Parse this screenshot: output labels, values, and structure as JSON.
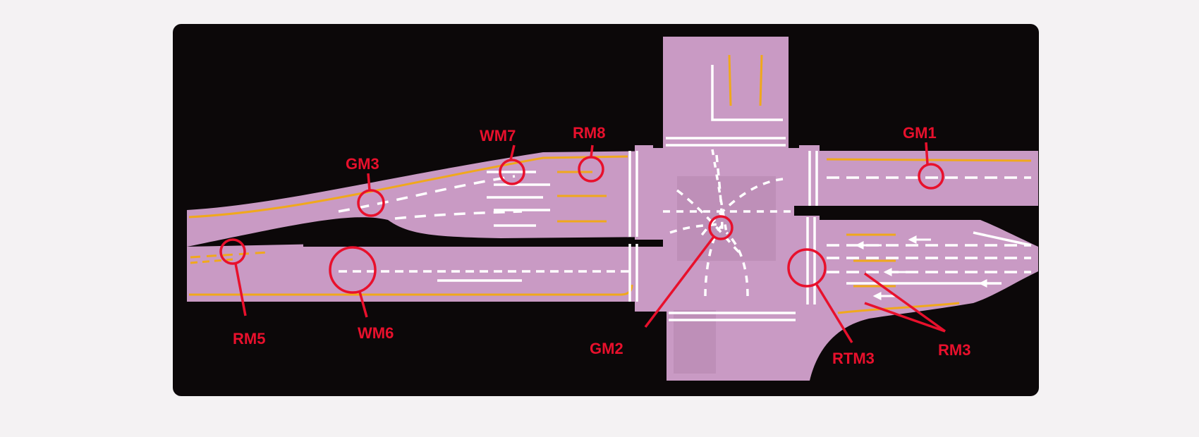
{
  "colors": {
    "background": "#f4f2f3",
    "board": "#0c0809",
    "road": "#c99ac4",
    "road_shade": "#b98ab3",
    "white_marking": "#ffffff",
    "yellow_marking": "#f0a81c",
    "callout": "#e8102c"
  },
  "callouts": {
    "gm1": "GM1",
    "gm2": "GM2",
    "gm3": "GM3",
    "wm6": "WM6",
    "wm7": "WM7",
    "rm3": "RM3",
    "rm5": "RM5",
    "rm8": "RM8",
    "rtm3": "RTM3"
  }
}
